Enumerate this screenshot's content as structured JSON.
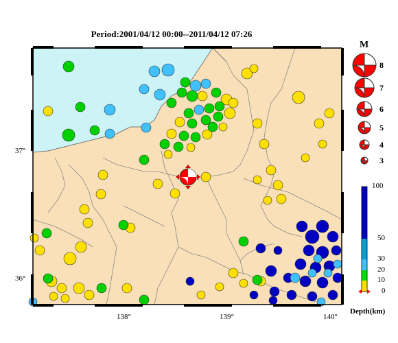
{
  "title": "Period:2001/04/12 00:00--2011/04/12 07:26",
  "map": {
    "lon_ticks": [
      "138°",
      "139°",
      "140°"
    ],
    "lat_ticks": [
      "37°",
      "36°"
    ]
  },
  "magnitude_legend": {
    "title": "M",
    "levels": [
      "8",
      "7",
      "6",
      "5",
      "4",
      "3"
    ]
  },
  "depth_legend": {
    "ticks": [
      "100",
      "50",
      "30",
      "20",
      "10",
      "0"
    ],
    "unit": "Depth(km)",
    "colors": {
      "0-10": "#ffe000",
      "10-20": "#00e000",
      "20-30": "#40c0ff",
      "30-50": "#00a0d0",
      "50-100": "#0000c0"
    }
  },
  "colors": {
    "sea": "#ccf4f6",
    "land": "#fae0b8",
    "mainshock": "#ff0000"
  }
}
